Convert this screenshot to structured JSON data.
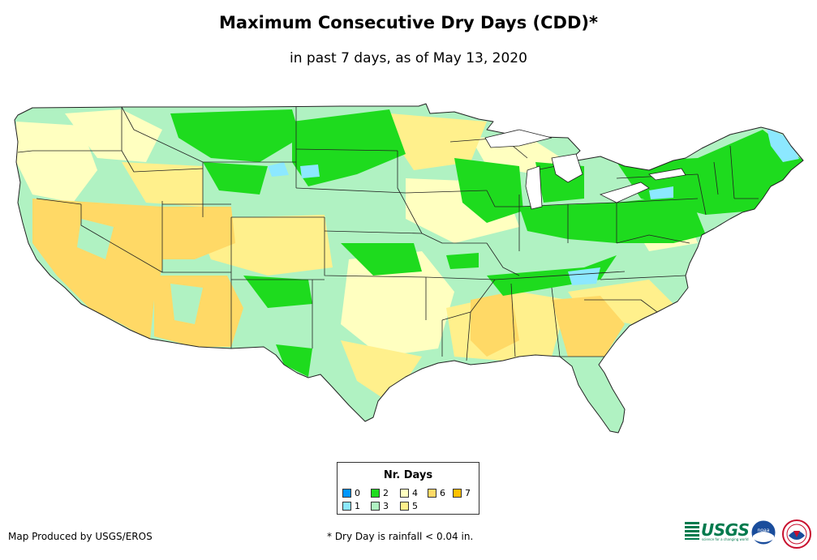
{
  "header": {
    "title": "Maximum Consecutive Dry Days (CDD)*",
    "subtitle": "in past 7 days, as of May 13, 2020"
  },
  "legend": {
    "title": "Nr. Days",
    "items": [
      {
        "label": "0",
        "color": "#0096ff"
      },
      {
        "label": "1",
        "color": "#8ce8ff"
      },
      {
        "label": "2",
        "color": "#1edb1e"
      },
      {
        "label": "3",
        "color": "#b0f2c2"
      },
      {
        "label": "4",
        "color": "#ffffc0"
      },
      {
        "label": "5",
        "color": "#fff08c"
      },
      {
        "label": "6",
        "color": "#ffd966"
      },
      {
        "label": "7",
        "color": "#ffc000"
      }
    ]
  },
  "footer": {
    "credit": "Map Produced by USGS/EROS",
    "footnote": "* Dry Day is rainfall < 0.04 in.",
    "usgs_logo_text": "USGS",
    "usgs_tagline": "science for a changing world",
    "noaa_logo_text": "noaa"
  },
  "icons": {
    "usgs": "usgs-logo-icon",
    "noaa": "noaa-logo-icon",
    "nws": "nws-logo-icon"
  }
}
